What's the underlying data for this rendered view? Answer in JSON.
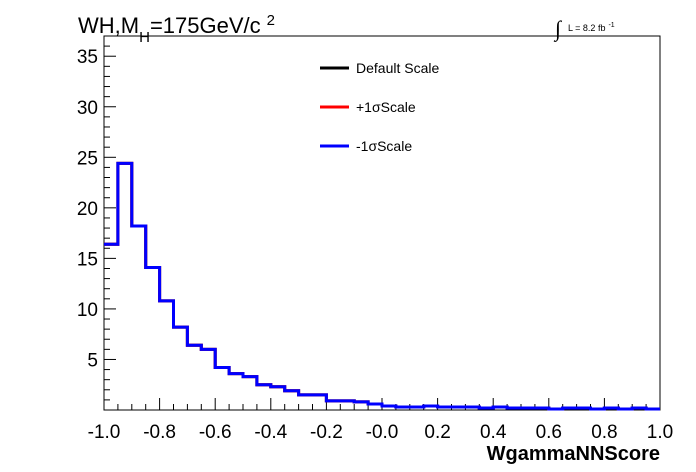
{
  "chart_data": {
    "type": "step-histogram",
    "title_parts": {
      "main": "WH,M",
      "sub": "H",
      "rest": "=175GeV/c",
      "sup": "2"
    },
    "lumi_parts": {
      "integral": "∫",
      "text": "L = 8.2 fb",
      "sup": "-1"
    },
    "xlabel": "WgammaNNScore",
    "ylabel": "",
    "xlim": [
      -1.0,
      1.0
    ],
    "ylim": [
      0,
      37
    ],
    "x_ticks": [
      "-1.0",
      "-0.8",
      "-0.6",
      "-0.4",
      "-0.2",
      "-0.0",
      "0.2",
      "0.4",
      "0.6",
      "0.8",
      "1.0"
    ],
    "y_ticks": [
      "5",
      "10",
      "15",
      "20",
      "25",
      "30",
      "35"
    ],
    "bin_edges": [
      -1.0,
      -0.95,
      -0.9,
      -0.85,
      -0.8,
      -0.75,
      -0.7,
      -0.65,
      -0.6,
      -0.55,
      -0.5,
      -0.45,
      -0.4,
      -0.35,
      -0.3,
      -0.25,
      -0.2,
      -0.15,
      -0.1,
      -0.05,
      0.0,
      0.05,
      0.1,
      0.15,
      0.2,
      0.25,
      0.3,
      0.35,
      0.4,
      0.45,
      0.5,
      0.55,
      0.6,
      0.65,
      0.7,
      0.75,
      0.8,
      0.85,
      0.9,
      0.95,
      1.0
    ],
    "series": [
      {
        "name": "Default Scale",
        "color": "#000000",
        "values": [
          16.4,
          24.4,
          18.2,
          14.1,
          10.8,
          8.2,
          6.4,
          6.0,
          4.2,
          3.6,
          3.3,
          2.5,
          2.3,
          1.9,
          1.5,
          1.5,
          0.9,
          0.9,
          0.8,
          0.6,
          0.4,
          0.3,
          0.3,
          0.4,
          0.3,
          0.3,
          0.3,
          0.2,
          0.3,
          0.2,
          0.2,
          0.2,
          0.1,
          0.2,
          0.2,
          0.1,
          0.2,
          0.1,
          0.2,
          0.1
        ]
      },
      {
        "name": "+1σScale",
        "color": "#ff0000",
        "values": [
          16.4,
          24.4,
          18.2,
          14.1,
          10.8,
          8.2,
          6.4,
          6.0,
          4.2,
          3.6,
          3.3,
          2.5,
          2.3,
          1.9,
          1.5,
          1.5,
          0.9,
          0.9,
          0.8,
          0.6,
          0.4,
          0.3,
          0.3,
          0.4,
          0.3,
          0.3,
          0.3,
          0.2,
          0.3,
          0.2,
          0.2,
          0.2,
          0.1,
          0.2,
          0.2,
          0.1,
          0.2,
          0.1,
          0.2,
          0.1
        ]
      },
      {
        "name": "-1σScale",
        "color": "#0000ff",
        "values": [
          16.4,
          24.4,
          18.2,
          14.1,
          10.8,
          8.2,
          6.4,
          6.0,
          4.2,
          3.6,
          3.3,
          2.5,
          2.3,
          1.9,
          1.5,
          1.5,
          0.9,
          0.9,
          0.8,
          0.6,
          0.4,
          0.3,
          0.3,
          0.4,
          0.3,
          0.3,
          0.3,
          0.2,
          0.3,
          0.2,
          0.2,
          0.2,
          0.1,
          0.2,
          0.2,
          0.1,
          0.2,
          0.1,
          0.2,
          0.1
        ]
      }
    ],
    "legend": {
      "position": "top-center",
      "border": false
    },
    "grid": false
  }
}
